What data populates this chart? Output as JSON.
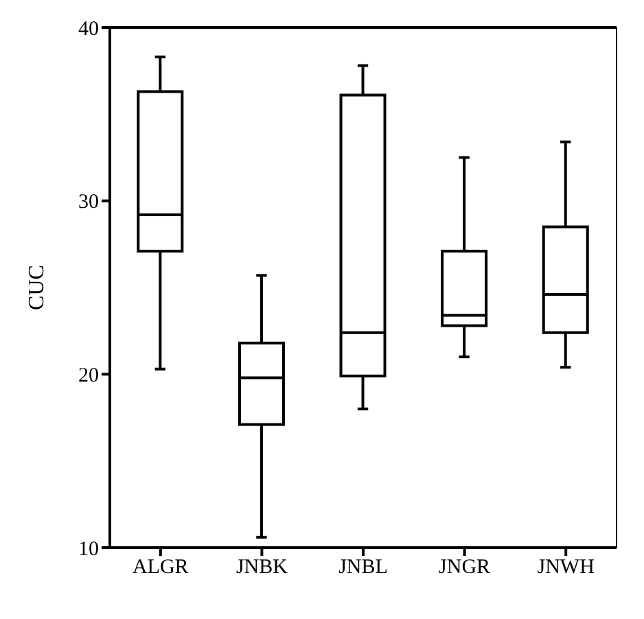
{
  "chart_data": {
    "type": "box",
    "ylabel": "CUC",
    "categories": [
      "ALGR",
      "JNBK",
      "JNBL",
      "JNGR",
      "JNWH"
    ],
    "color": "#000000",
    "ylim": [
      10,
      40
    ],
    "yticks": [
      10,
      20,
      30,
      40
    ],
    "grid": false,
    "boxes": [
      {
        "low": 20.3,
        "q1": 27.1,
        "median": 29.2,
        "q3": 36.3,
        "high": 38.3
      },
      {
        "low": 10.6,
        "q1": 17.1,
        "median": 19.8,
        "q3": 21.8,
        "high": 25.7
      },
      {
        "low": 18.0,
        "q1": 19.9,
        "median": 22.4,
        "q3": 36.1,
        "high": 37.8
      },
      {
        "low": 21.0,
        "q1": 22.8,
        "median": 23.4,
        "q3": 27.1,
        "high": 32.5
      },
      {
        "low": 20.4,
        "q1": 22.4,
        "median": 24.6,
        "q3": 28.5,
        "high": 33.4
      }
    ]
  }
}
